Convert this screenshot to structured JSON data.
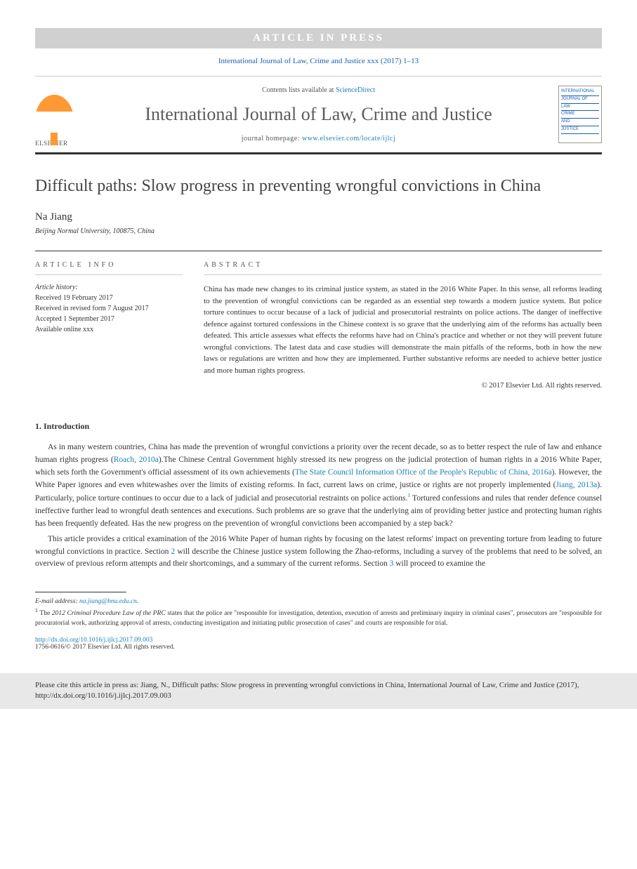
{
  "banner": {
    "text": "ARTICLE IN PRESS"
  },
  "topCitation": "International Journal of Law, Crime and Justice xxx (2017) 1–13",
  "header": {
    "elsevierText": "ELSEVIER",
    "contentsPrefix": "Contents lists available at ",
    "contentsLink": "ScienceDirect",
    "journalName": "International Journal of Law, Crime and Justice",
    "homepagePrefix": "journal homepage: ",
    "homepageLink": "www.elsevier.com/locate/ijlcj",
    "coverLines": [
      "INTERNATIONAL",
      "JOURNAL OF",
      "LAW",
      "CRIME",
      "AND",
      "JUSTICE"
    ]
  },
  "article": {
    "title": "Difficult paths: Slow progress in preventing wrongful convictions in China",
    "author": "Na Jiang",
    "affiliation": "Beijing Normal University, 100875, China"
  },
  "info": {
    "heading": "ARTICLE INFO",
    "historyLabel": "Article history:",
    "received": "Received 19 February 2017",
    "revised": "Received in revised form 7 August 2017",
    "accepted": "Accepted 1 September 2017",
    "online": "Available online xxx"
  },
  "abstract": {
    "heading": "ABSTRACT",
    "text": "China has made new changes to its criminal justice system, as stated in the 2016 White Paper. In this sense, all reforms leading to the prevention of wrongful convictions can be regarded as an essential step towards a modern justice system. But police torture continues to occur because of a lack of judicial and prosecutorial restraints on police actions. The danger of ineffective defence against tortured confessions in the Chinese context is so grave that the underlying aim of the reforms has actually been defeated. This article assesses what effects the reforms have had on China's practice and whether or not they will prevent future wrongful convictions. The latest data and case studies will demonstrate the main pitfalls of the reforms, both in how the new laws or regulations are written and how they are implemented. Further substantive reforms are needed to achieve better justice and more human rights progress.",
    "copyright": "© 2017 Elsevier Ltd. All rights reserved."
  },
  "sections": {
    "introHeading": "1. Introduction",
    "para1a": "As in many western countries, China has made the prevention of wrongful convictions a priority over the recent decade, so as to better respect the rule of law and enhance human rights progress (",
    "ref1": "Roach, 2010a",
    "para1b": ").The Chinese Central Government highly stressed its new progress on the judicial protection of human rights in a 2016 White Paper, which sets forth the Government's official assessment of its own achievements (",
    "ref2": "The State Council Information Office of the People's Republic of China, 2016a",
    "para1c": "). However, the White Paper ignores and even whitewashes over the limits of existing reforms. In fact, current laws on crime, justice or rights are not properly implemented (",
    "ref3": "Jiang, 2013a",
    "para1d": "). Particularly, police torture continues to occur due to a lack of judicial and prosecutorial restraints on police actions.",
    "fn1": "1",
    "para1e": " Tortured confessions and rules that render defence counsel ineffective further lead to wrongful death sentences and executions. Such problems are so grave that the underlying aim of providing better justice and protecting human rights has been frequently defeated. Has the new progress on the prevention of wrongful convictions been accompanied by a step back?",
    "para2a": "This article provides a critical examination of the 2016 White Paper of human rights by focusing on the latest reforms' impact on preventing torture from leading to future wrongful convictions in practice. Section ",
    "secref2": "2",
    "para2b": " will describe the Chinese justice system following the Zhao-reforms, including a survey of the problems that need to be solved, an overview of previous reform attempts and their shortcomings, and a summary of the current reforms. Section ",
    "secref3": "3",
    "para2c": " will proceed to examine the"
  },
  "footer": {
    "emailLabel": "E-mail address: ",
    "email": "na.jiang@bnu.edu.cn",
    "emailSuffix": ".",
    "footnoteNum": "1",
    "footnoteA": " The ",
    "footnoteItalic": "2012 Criminal Procedure Law of the PRC",
    "footnoteB": " states that the police are \"responsible for investigation, detention, execution of arrests and preliminary inquiry in criminal cases\", prosecutors are \"responsible for procuratorial work, authorizing approval of arrests, conducting investigation and initiating public prosecution of cases\" and courts are responsible for trial.",
    "doi": "http://dx.doi.org/10.1016/j.ijlcj.2017.09.003",
    "issn": "1756-0616/© 2017 Elsevier Ltd. All rights reserved.",
    "citeBox": "Please cite this article in press as: Jiang, N., Difficult paths: Slow progress in preventing wrongful convictions in China, International Journal of Law, Crime and Justice (2017), http://dx.doi.org/10.1016/j.ijlcj.2017.09.003"
  }
}
